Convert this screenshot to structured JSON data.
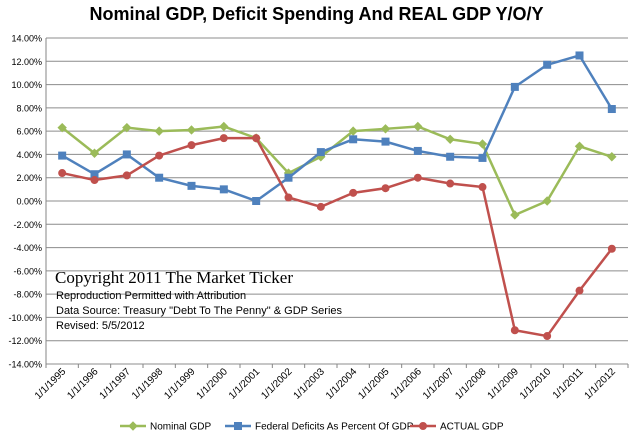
{
  "chart_data": {
    "type": "line",
    "title": "Nominal GDP, Deficit Spending And REAL GDP Y/O/Y",
    "xlabel": "",
    "ylabel": "",
    "categories": [
      "1/1/1995",
      "1/1/1996",
      "1/1/1997",
      "1/1/1998",
      "1/1/1999",
      "1/1/2000",
      "1/1/2001",
      "1/1/2002",
      "1/1/2003",
      "1/1/2004",
      "1/1/2005",
      "1/1/2006",
      "1/1/2007",
      "1/1/2008",
      "1/1/2009",
      "1/1/2010",
      "1/1/2011",
      "1/1/2012"
    ],
    "ylim": [
      -14,
      14
    ],
    "yticks": [
      -14,
      -12,
      -10,
      -8,
      -6,
      -4,
      -2,
      0,
      2,
      4,
      6,
      8,
      10,
      12,
      14
    ],
    "ytick_labels": [
      "-14.00%",
      "-12.00%",
      "-10.00%",
      "-8.00%",
      "-6.00%",
      "-4.00%",
      "-2.00%",
      "0.00%",
      "2.00%",
      "4.00%",
      "6.00%",
      "8.00%",
      "10.00%",
      "12.00%",
      "14.00%"
    ],
    "grid": true,
    "legend_position": "bottom",
    "series": [
      {
        "name": "Nominal GDP",
        "color": "#9bbb59",
        "marker": "diamond",
        "values": [
          6.3,
          4.1,
          6.3,
          6.0,
          6.1,
          6.4,
          5.4,
          2.4,
          3.8,
          6.0,
          6.2,
          6.4,
          5.3,
          4.9,
          -1.2,
          0.0,
          4.7,
          3.8
        ]
      },
      {
        "name": "Federal Deficits As Percent Of GDP",
        "color": "#4f81bd",
        "marker": "square",
        "values": [
          3.9,
          2.3,
          4.0,
          2.0,
          1.3,
          1.0,
          0.0,
          2.0,
          4.2,
          5.3,
          5.1,
          4.3,
          3.8,
          3.7,
          9.8,
          11.7,
          12.5,
          7.9
        ]
      },
      {
        "name": "ACTUAL GDP",
        "color": "#c0504d",
        "marker": "circle",
        "values": [
          2.4,
          1.8,
          2.2,
          3.9,
          4.8,
          5.4,
          5.4,
          0.3,
          -0.5,
          0.7,
          1.1,
          2.0,
          1.5,
          1.2,
          -11.1,
          -11.6,
          -7.7,
          -4.1
        ]
      }
    ],
    "annotations": {
      "copyright": "Copyright  2011 The Market Ticker",
      "lines": [
        "Reproduction Permitted with Attribution",
        "Data Source:  Treasury \"Debt To The Penny\" & GDP Series",
        "Revised: 5/5/2012"
      ]
    }
  }
}
